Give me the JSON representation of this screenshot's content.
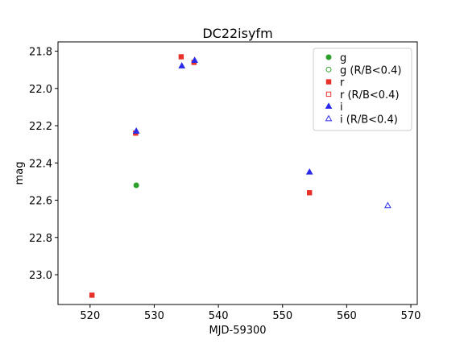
{
  "chart_data": {
    "type": "scatter",
    "title": "DC22isyfm",
    "xlabel": "MJD-59300",
    "ylabel": "mag",
    "xlim": [
      515,
      571
    ],
    "ylim": [
      23.16,
      21.75
    ],
    "y_inverted": true,
    "x_ticks": [
      520,
      530,
      540,
      550,
      560,
      570
    ],
    "y_ticks": [
      21.8,
      22.0,
      22.2,
      22.4,
      22.6,
      22.8,
      23.0
    ],
    "grid": false,
    "legend_position": "top-right",
    "series": [
      {
        "name": "g",
        "color": "#2ca02c",
        "marker": "circle",
        "filled": true,
        "points": [
          {
            "x": 527.2,
            "y": 22.52
          }
        ]
      },
      {
        "name": "g (R/B<0.4)",
        "color": "#2ca02c",
        "marker": "circle",
        "filled": false,
        "points": []
      },
      {
        "name": "r",
        "color": "#e8302a",
        "marker": "square",
        "filled": true,
        "points": [
          {
            "x": 520.3,
            "y": 23.11
          },
          {
            "x": 527.1,
            "y": 22.24
          },
          {
            "x": 534.2,
            "y": 21.83
          },
          {
            "x": 536.2,
            "y": 21.86
          },
          {
            "x": 554.2,
            "y": 22.56
          }
        ]
      },
      {
        "name": "r (R/B<0.4)",
        "color": "#e8302a",
        "marker": "square",
        "filled": false,
        "points": []
      },
      {
        "name": "i",
        "color": "#2a2ae8",
        "marker": "triangle",
        "filled": true,
        "points": [
          {
            "x": 527.2,
            "y": 22.23
          },
          {
            "x": 534.3,
            "y": 21.88
          },
          {
            "x": 536.3,
            "y": 21.85
          },
          {
            "x": 554.2,
            "y": 22.45
          }
        ]
      },
      {
        "name": "i (R/B<0.4)",
        "color": "#2a2ae8",
        "marker": "triangle",
        "filled": false,
        "points": [
          {
            "x": 566.4,
            "y": 22.63
          }
        ]
      }
    ]
  }
}
